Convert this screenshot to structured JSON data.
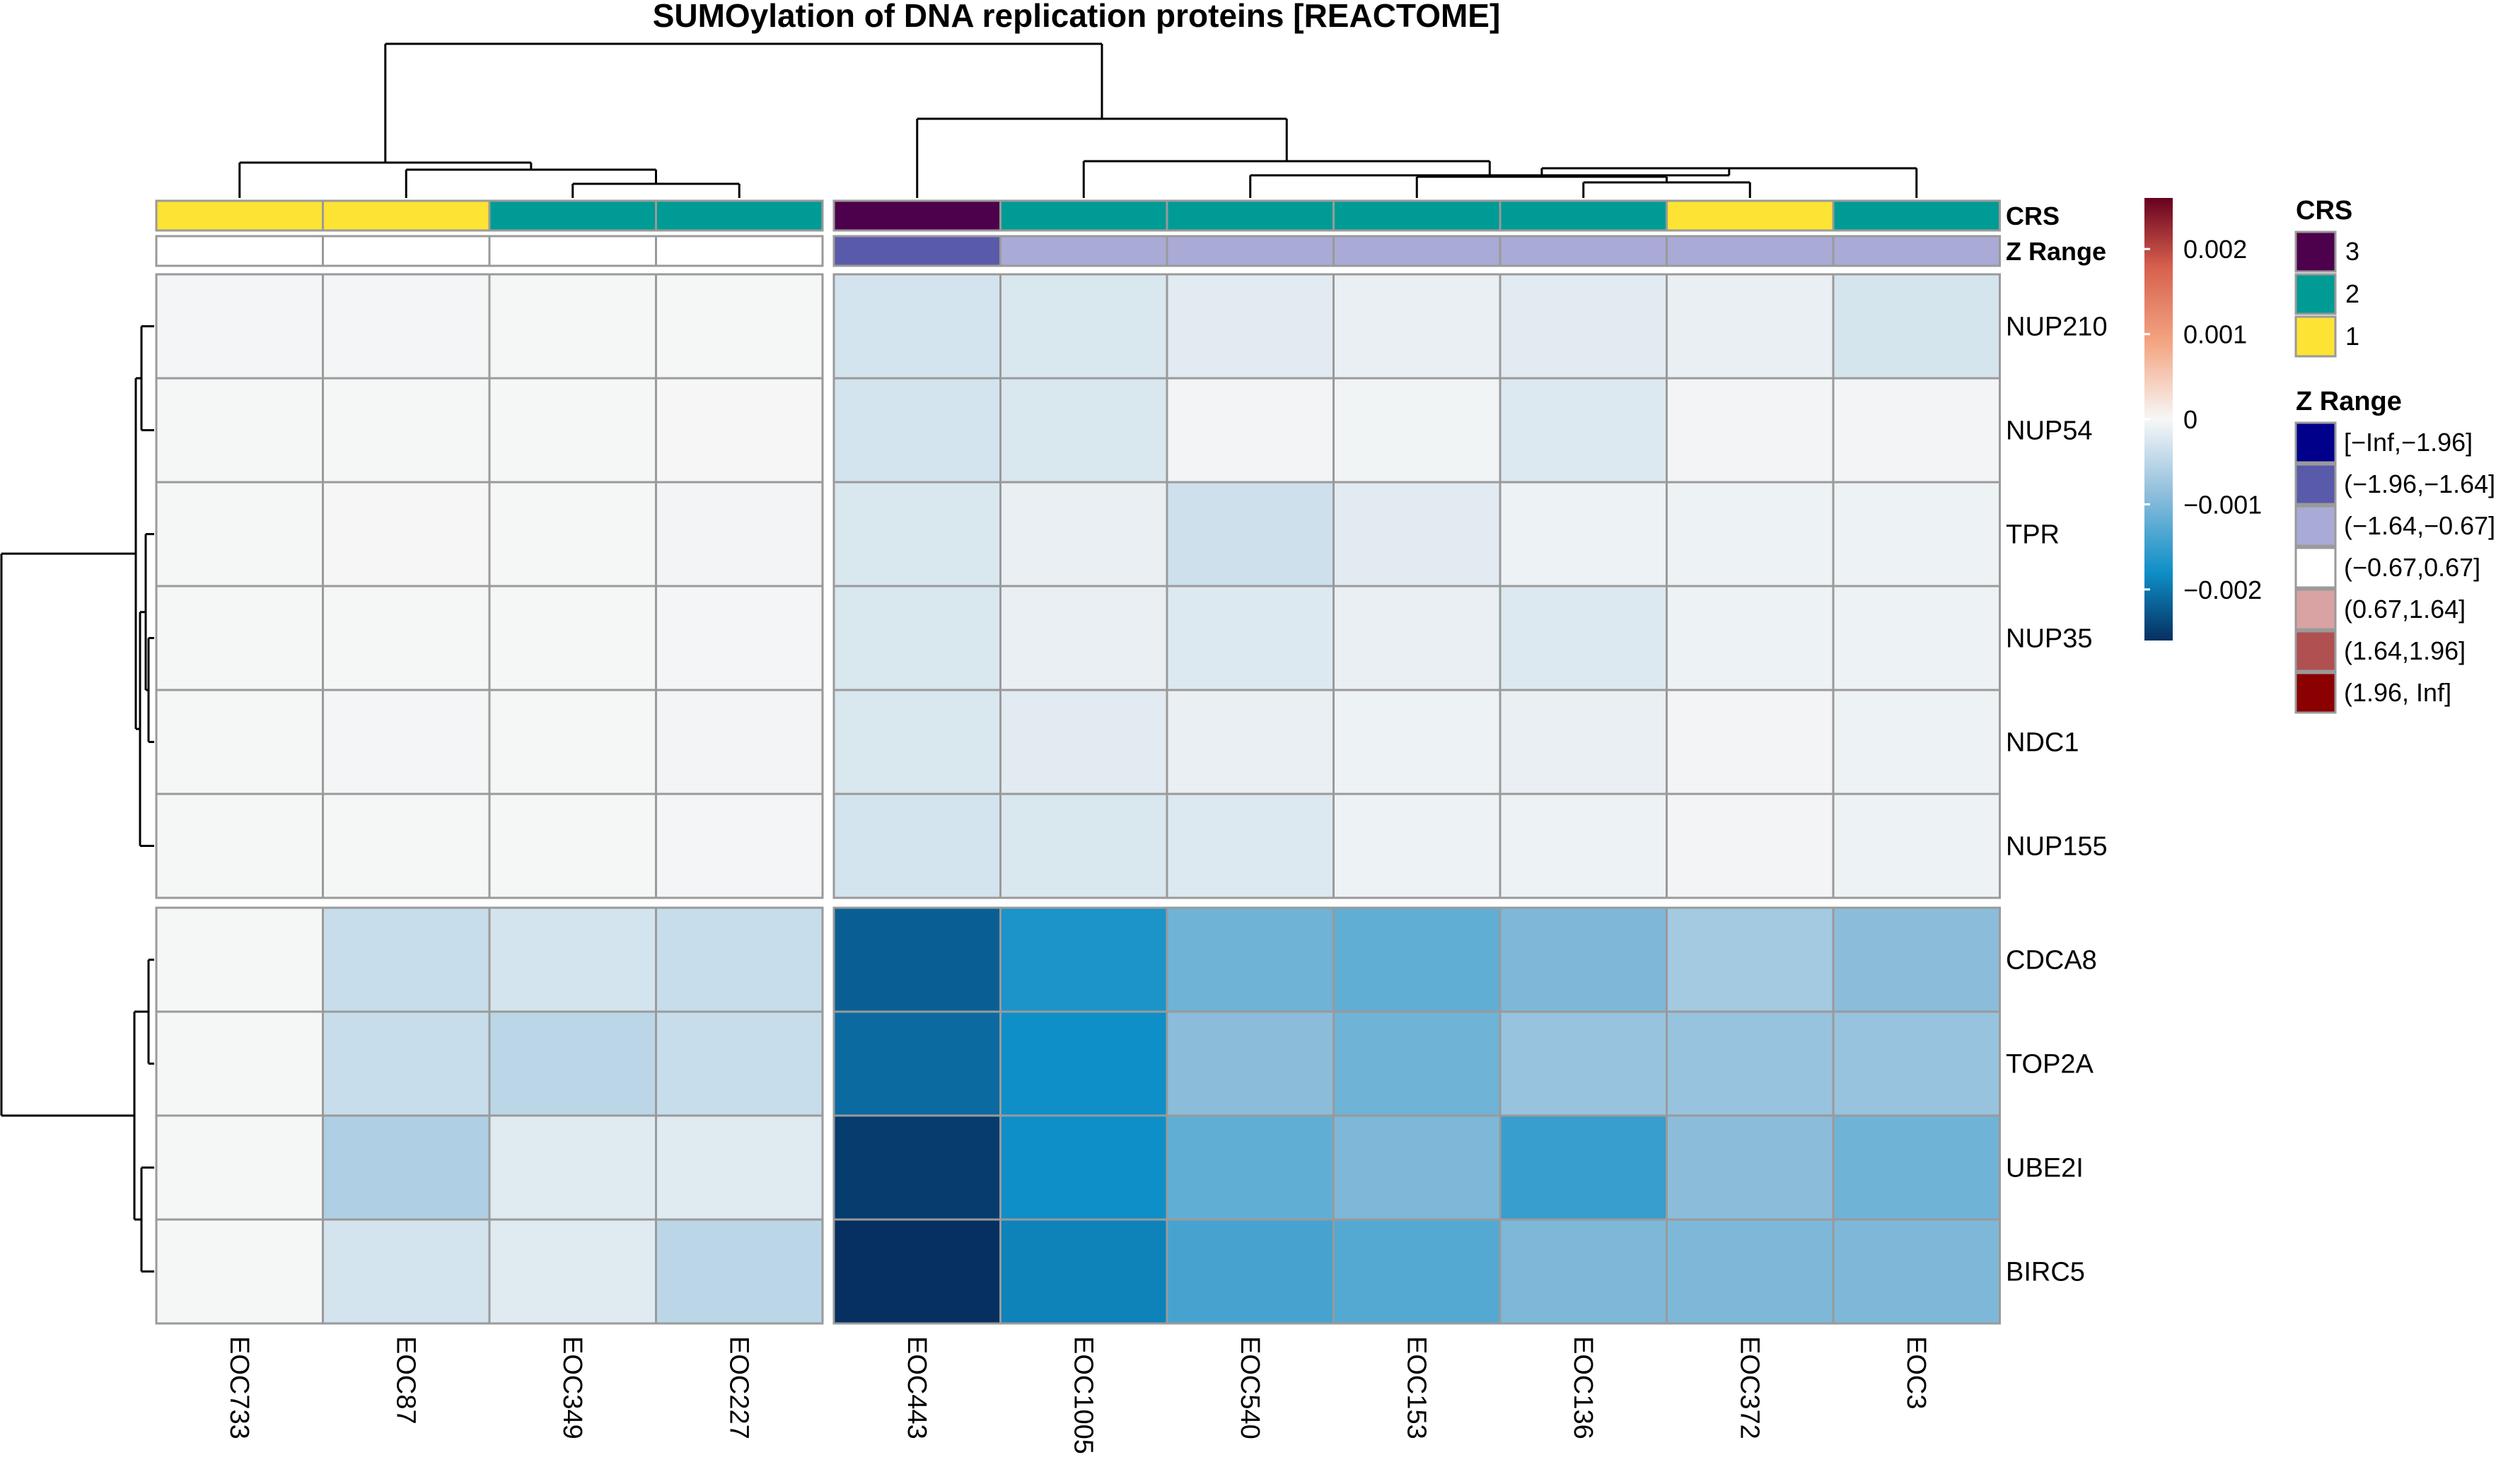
{
  "chart_data": {
    "type": "heatmap",
    "title": "SUMOylation of DNA replication proteins [REACTOME]",
    "columns": [
      "EOC733",
      "EOC87",
      "EOC349",
      "EOC227",
      "EOC443",
      "EOC1005",
      "EOC540",
      "EOC153",
      "EOC136",
      "EOC372",
      "EOC3"
    ],
    "rows": [
      "NUP210",
      "NUP54",
      "TPR",
      "NUP35",
      "NDC1",
      "NUP155",
      "CDCA8",
      "TOP2A",
      "UBE2I",
      "BIRC5"
    ],
    "values": [
      [
        -3e-05,
        -3e-05,
        -2e-05,
        -2e-05,
        -0.0003,
        -0.00025,
        -0.00018,
        -0.00012,
        -0.00018,
        -0.00012,
        -0.00028
      ],
      [
        -2e-05,
        -2e-05,
        -2e-05,
        -1e-05,
        -0.0003,
        -0.00025,
        -4e-05,
        -5e-05,
        -0.00022,
        -4e-05,
        -4e-05
      ],
      [
        -2e-05,
        -1e-05,
        -2e-05,
        -4e-05,
        -0.00025,
        -0.00012,
        -0.00035,
        -0.00018,
        -8e-05,
        -8e-05,
        -8e-05
      ],
      [
        -2e-05,
        -2e-05,
        -2e-05,
        -3e-05,
        -0.00025,
        -0.00012,
        -0.00022,
        -0.00012,
        -0.00022,
        -8e-05,
        -8e-05
      ],
      [
        -2e-05,
        -3e-05,
        -2e-05,
        -4e-05,
        -0.00025,
        -0.00018,
        -0.00012,
        -8e-05,
        -0.00012,
        -4e-05,
        -8e-05
      ],
      [
        -2e-05,
        -2e-05,
        -2e-05,
        -3e-05,
        -0.0003,
        -0.00025,
        -0.00022,
        -8e-05,
        -8e-05,
        -4e-05,
        -8e-05
      ],
      [
        -2e-05,
        -0.0004,
        -0.0003,
        -0.0004,
        -0.0022,
        -0.0017,
        -0.0011,
        -0.0012,
        -0.001,
        -0.0007,
        -0.0009
      ],
      [
        -2e-05,
        -0.0004,
        -0.0005,
        -0.0004,
        -0.0021,
        -0.0018,
        -0.0009,
        -0.0011,
        -0.0008,
        -0.0008,
        -0.0008
      ],
      [
        -2e-05,
        -0.0006,
        -0.0002,
        -0.0002,
        -0.0025,
        -0.0018,
        -0.0012,
        -0.001,
        -0.0015,
        -0.0009,
        -0.0011
      ],
      [
        -2e-05,
        -0.0003,
        -0.0002,
        -0.0005,
        -0.0028,
        -0.0019,
        -0.0014,
        -0.0013,
        -0.001,
        -0.001,
        -0.001
      ]
    ],
    "column_split": [
      4,
      7
    ],
    "row_split": [
      6,
      4
    ],
    "crs": [
      1,
      1,
      2,
      2,
      3,
      2,
      2,
      2,
      2,
      1,
      2
    ],
    "z_range": [
      3,
      3,
      3,
      3,
      1,
      2,
      2,
      2,
      2,
      2,
      2
    ],
    "annotation_labels": [
      "CRS",
      "Z Range"
    ],
    "color_scale": {
      "ticks": [
        0.002,
        0.001,
        0,
        -0.001,
        -0.002
      ],
      "tick_labels": [
        "0.002",
        "0.001",
        "0",
        "−0.001",
        "−0.002"
      ],
      "min": -0.0026,
      "max": 0.0026,
      "stops": [
        {
          "value": -0.0026,
          "color": "#053061"
        },
        {
          "value": -0.0018,
          "color": "#0E8FC7"
        },
        {
          "value": -0.0009,
          "color": "#8BBDDB"
        },
        {
          "value": 0,
          "color": "#F7F7F7"
        },
        {
          "value": 0.0009,
          "color": "#F4A582"
        },
        {
          "value": 0.0018,
          "color": "#D6604D"
        },
        {
          "value": 0.0026,
          "color": "#67001F"
        }
      ]
    },
    "legends": {
      "crs": {
        "title": "CRS",
        "items": [
          {
            "label": "3",
            "color": "#4D004B"
          },
          {
            "label": "2",
            "color": "#009B95"
          },
          {
            "label": "1",
            "color": "#FDE333"
          }
        ]
      },
      "z_range": {
        "title": "Z Range",
        "items": [
          {
            "label": "[−Inf,−1.96]",
            "color": "#00008B"
          },
          {
            "label": "(−1.96,−1.64]",
            "color": "#5A5AAA"
          },
          {
            "label": "(−1.64,−0.67]",
            "color": "#AAAAD6"
          },
          {
            "label": "(−0.67,0.67]",
            "color": "#FFFFFF"
          },
          {
            "label": "(0.67,1.64]",
            "color": "#D9A3A3"
          },
          {
            "label": "(1.64,1.96]",
            "color": "#B05050"
          },
          {
            "label": "(1.96, Inf]",
            "color": "#8B0000"
          }
        ]
      }
    }
  }
}
